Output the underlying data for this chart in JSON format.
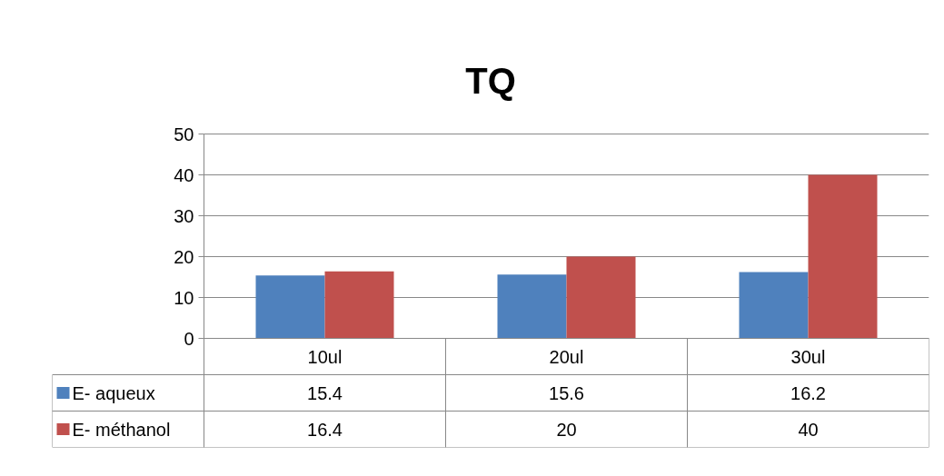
{
  "chart_data": {
    "type": "bar",
    "title": "TQ",
    "categories": [
      "10ul",
      "20ul",
      "30ul"
    ],
    "series": [
      {
        "name": "E- aqueux",
        "color": "#4f81bd",
        "values": [
          15.4,
          15.6,
          16.2
        ]
      },
      {
        "name": "E- méthanol",
        "color": "#c0504d",
        "values": [
          16.4,
          20,
          40
        ]
      }
    ],
    "ylim": [
      0,
      50
    ],
    "yticks": [
      0,
      10,
      20,
      30,
      40,
      50
    ],
    "grid": "y",
    "legend": "bottom left",
    "data_labels": true
  }
}
